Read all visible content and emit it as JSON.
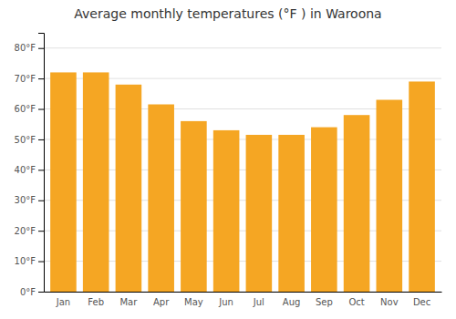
{
  "chart_data": {
    "type": "bar",
    "title": "Average monthly temperatures (°F ) in Waroona",
    "categories": [
      "Jan",
      "Feb",
      "Mar",
      "Apr",
      "May",
      "Jun",
      "Jul",
      "Aug",
      "Sep",
      "Oct",
      "Nov",
      "Dec"
    ],
    "values": [
      72,
      72,
      68,
      61.5,
      56,
      53,
      51.5,
      51.5,
      54,
      58,
      63,
      69
    ],
    "color": "#F5A623",
    "ylim": [
      0,
      85
    ],
    "yticks": [
      {
        "value": 0,
        "label": "0°F"
      },
      {
        "value": 10,
        "label": "10°F"
      },
      {
        "value": 20,
        "label": "20°F"
      },
      {
        "value": 30,
        "label": "30°F"
      },
      {
        "value": 40,
        "label": "40°F"
      },
      {
        "value": 50,
        "label": "50°F"
      },
      {
        "value": 60,
        "label": "60°F"
      },
      {
        "value": 70,
        "label": "70°F"
      },
      {
        "value": 80,
        "label": "80°F"
      }
    ],
    "grid": true
  }
}
